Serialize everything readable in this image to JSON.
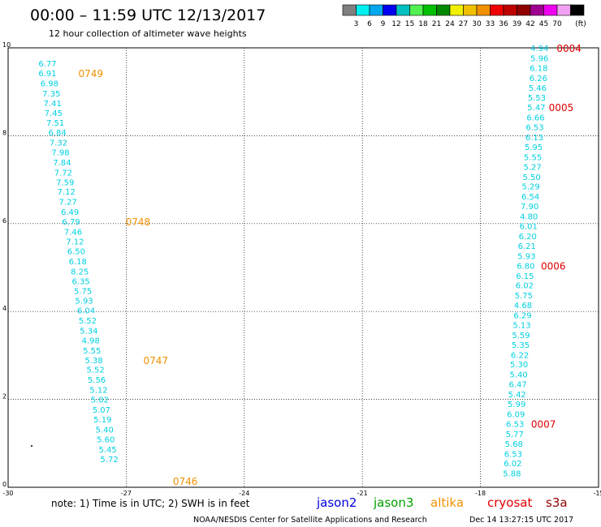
{
  "header": {
    "title": "00:00 – 11:59 UTC 12/13/2017",
    "subtitle": "12 hour collection of altimeter wave heights"
  },
  "legend_scale": {
    "colors": [
      "#7f7f7f",
      "#00f0f0",
      "#00a8f0",
      "#0000f0",
      "#00c0c0",
      "#50f050",
      "#00c000",
      "#008800",
      "#f0f000",
      "#f0c000",
      "#f09000",
      "#f00000",
      "#c00000",
      "#900000",
      "#a00090",
      "#f000f0",
      "#f0a0f0",
      "#000000"
    ],
    "labels": [
      "3",
      "6",
      "9",
      "12",
      "15",
      "18",
      "21",
      "24",
      "27",
      "30",
      "33",
      "36",
      "39",
      "42",
      "45",
      "70"
    ],
    "unit": "(ft)"
  },
  "footer": {
    "note": "note:  1) Time is in UTC; 2) SWH is in feet",
    "credit": "NOAA/NESDIS Center for Satellite Applications and Research",
    "timestamp": "Dec 14 13:27:15 UTC 2017",
    "satellites": [
      {
        "name": "jason2",
        "color": "#0000e0"
      },
      {
        "name": "jason3",
        "color": "#00a000"
      },
      {
        "name": "altika",
        "color": "#f09000"
      },
      {
        "name": "cryosat",
        "color": "#e00000"
      },
      {
        "name": "s3a",
        "color": "#900000"
      }
    ]
  },
  "chart_data": {
    "type": "scatter",
    "title": "",
    "xlabel": "",
    "ylabel": "",
    "xlim": [
      -30,
      -15
    ],
    "ylim": [
      0,
      10
    ],
    "x_ticks": [
      -30,
      -27,
      -24,
      -21,
      -18,
      -15
    ],
    "y_ticks": [
      0,
      2,
      4,
      6,
      8,
      10
    ],
    "grid": true,
    "value_color": "#00d0e0",
    "series": [
      {
        "name": "track-west",
        "points": [
          {
            "x": -29.0,
            "y": 9.65,
            "v": "6.77"
          },
          {
            "x": -29.0,
            "y": 9.43,
            "v": "6.91"
          },
          {
            "x": -28.95,
            "y": 9.2,
            "v": "6.98"
          },
          {
            "x": -28.9,
            "y": 8.97,
            "v": "7.35"
          },
          {
            "x": -28.87,
            "y": 8.75,
            "v": "7.41"
          },
          {
            "x": -28.85,
            "y": 8.52,
            "v": "7.45"
          },
          {
            "x": -28.8,
            "y": 8.3,
            "v": "7.51"
          },
          {
            "x": -28.75,
            "y": 8.08,
            "v": "6.84"
          },
          {
            "x": -28.72,
            "y": 7.85,
            "v": "7.32"
          },
          {
            "x": -28.67,
            "y": 7.63,
            "v": "7.98"
          },
          {
            "x": -28.63,
            "y": 7.4,
            "v": "7.84"
          },
          {
            "x": -28.6,
            "y": 7.17,
            "v": "7.72"
          },
          {
            "x": -28.55,
            "y": 6.95,
            "v": "7.59"
          },
          {
            "x": -28.52,
            "y": 6.73,
            "v": "7.12"
          },
          {
            "x": -28.48,
            "y": 6.5,
            "v": "7.27"
          },
          {
            "x": -28.43,
            "y": 6.27,
            "v": "6.49"
          },
          {
            "x": -28.4,
            "y": 6.05,
            "v": "6.79"
          },
          {
            "x": -28.35,
            "y": 5.82,
            "v": "7.46"
          },
          {
            "x": -28.3,
            "y": 5.6,
            "v": "7.12"
          },
          {
            "x": -28.27,
            "y": 5.38,
            "v": "6.50"
          },
          {
            "x": -28.23,
            "y": 5.15,
            "v": "6.18"
          },
          {
            "x": -28.18,
            "y": 4.92,
            "v": "8.25"
          },
          {
            "x": -28.15,
            "y": 4.7,
            "v": "6.35"
          },
          {
            "x": -28.1,
            "y": 4.47,
            "v": "5.75"
          },
          {
            "x": -28.07,
            "y": 4.25,
            "v": "5.93"
          },
          {
            "x": -28.02,
            "y": 4.03,
            "v": "6.04"
          },
          {
            "x": -27.98,
            "y": 3.8,
            "v": "5.52"
          },
          {
            "x": -27.95,
            "y": 3.57,
            "v": "5.34"
          },
          {
            "x": -27.9,
            "y": 3.35,
            "v": "4.98"
          },
          {
            "x": -27.87,
            "y": 3.12,
            "v": "5.55"
          },
          {
            "x": -27.82,
            "y": 2.9,
            "v": "5.38"
          },
          {
            "x": -27.78,
            "y": 2.68,
            "v": "5.52"
          },
          {
            "x": -27.75,
            "y": 2.45,
            "v": "5.56"
          },
          {
            "x": -27.7,
            "y": 2.22,
            "v": "5.12"
          },
          {
            "x": -27.67,
            "y": 2.0,
            "v": "5.02"
          },
          {
            "x": -27.63,
            "y": 1.77,
            "v": "5.07"
          },
          {
            "x": -27.6,
            "y": 1.55,
            "v": "5.19"
          },
          {
            "x": -27.55,
            "y": 1.32,
            "v": "5.40"
          },
          {
            "x": -27.52,
            "y": 1.1,
            "v": "5.60"
          },
          {
            "x": -27.47,
            "y": 0.87,
            "v": "5.45"
          },
          {
            "x": -27.43,
            "y": 0.65,
            "v": "5.72"
          }
        ]
      },
      {
        "name": "track-east",
        "points": [
          {
            "x": -16.5,
            "y": 10.0,
            "v": "4.94"
          },
          {
            "x": -16.5,
            "y": 9.77,
            "v": "5.96"
          },
          {
            "x": -16.52,
            "y": 9.55,
            "v": "6.18"
          },
          {
            "x": -16.53,
            "y": 9.32,
            "v": "6.26"
          },
          {
            "x": -16.55,
            "y": 9.1,
            "v": "5.46"
          },
          {
            "x": -16.57,
            "y": 8.87,
            "v": "5.53"
          },
          {
            "x": -16.58,
            "y": 8.65,
            "v": "5.47"
          },
          {
            "x": -16.6,
            "y": 8.42,
            "v": "6.66"
          },
          {
            "x": -16.62,
            "y": 8.2,
            "v": "6.53"
          },
          {
            "x": -16.63,
            "y": 7.97,
            "v": "6.13"
          },
          {
            "x": -16.65,
            "y": 7.75,
            "v": "5.95"
          },
          {
            "x": -16.67,
            "y": 7.52,
            "v": "5.55"
          },
          {
            "x": -16.68,
            "y": 7.3,
            "v": "5.27"
          },
          {
            "x": -16.7,
            "y": 7.07,
            "v": "5.50"
          },
          {
            "x": -16.72,
            "y": 6.85,
            "v": "5.29"
          },
          {
            "x": -16.73,
            "y": 6.62,
            "v": "6.54"
          },
          {
            "x": -16.75,
            "y": 6.4,
            "v": "7.90"
          },
          {
            "x": -16.77,
            "y": 6.17,
            "v": "4.80"
          },
          {
            "x": -16.78,
            "y": 5.95,
            "v": "6.01"
          },
          {
            "x": -16.8,
            "y": 5.72,
            "v": "6.20"
          },
          {
            "x": -16.82,
            "y": 5.5,
            "v": "6.21"
          },
          {
            "x": -16.83,
            "y": 5.27,
            "v": "5.93"
          },
          {
            "x": -16.85,
            "y": 5.05,
            "v": "6.80"
          },
          {
            "x": -16.87,
            "y": 4.82,
            "v": "6.15"
          },
          {
            "x": -16.88,
            "y": 4.6,
            "v": "6.02"
          },
          {
            "x": -16.9,
            "y": 4.37,
            "v": "5.75"
          },
          {
            "x": -16.92,
            "y": 4.15,
            "v": "4.68"
          },
          {
            "x": -16.93,
            "y": 3.92,
            "v": "6.29"
          },
          {
            "x": -16.95,
            "y": 3.7,
            "v": "5.13"
          },
          {
            "x": -16.97,
            "y": 3.47,
            "v": "5.59"
          },
          {
            "x": -16.98,
            "y": 3.25,
            "v": "5.35"
          },
          {
            "x": -17.0,
            "y": 3.02,
            "v": "6.22"
          },
          {
            "x": -17.02,
            "y": 2.8,
            "v": "5.30"
          },
          {
            "x": -17.03,
            "y": 2.57,
            "v": "5.40"
          },
          {
            "x": -17.05,
            "y": 2.35,
            "v": "6.47"
          },
          {
            "x": -17.07,
            "y": 2.12,
            "v": "5.42"
          },
          {
            "x": -17.08,
            "y": 1.9,
            "v": "5.99"
          },
          {
            "x": -17.1,
            "y": 1.67,
            "v": "6.09"
          },
          {
            "x": -17.12,
            "y": 1.45,
            "v": "6.53"
          },
          {
            "x": -17.13,
            "y": 1.22,
            "v": "5.77"
          },
          {
            "x": -17.15,
            "y": 1.0,
            "v": "5.68"
          },
          {
            "x": -17.17,
            "y": 0.77,
            "v": "6.53"
          },
          {
            "x": -17.18,
            "y": 0.55,
            "v": "6.02"
          },
          {
            "x": -17.2,
            "y": 0.32,
            "v": "5.88"
          }
        ]
      }
    ],
    "time_labels": [
      {
        "x": -27.9,
        "y": 9.43,
        "text": "0749",
        "color": "#f09000"
      },
      {
        "x": -26.7,
        "y": 6.05,
        "text": "0748",
        "color": "#f09000"
      },
      {
        "x": -26.25,
        "y": 2.9,
        "text": "0747",
        "color": "#f09000"
      },
      {
        "x": -25.5,
        "y": 0.15,
        "text": "0746",
        "color": "#f09000"
      },
      {
        "x": -15.75,
        "y": 10.0,
        "text": "0004",
        "color": "#e00000"
      },
      {
        "x": -15.95,
        "y": 8.65,
        "text": "0005",
        "color": "#e00000"
      },
      {
        "x": -16.15,
        "y": 5.05,
        "text": "0006",
        "color": "#e00000"
      },
      {
        "x": -16.4,
        "y": 1.45,
        "text": "0007",
        "color": "#e00000"
      }
    ]
  }
}
